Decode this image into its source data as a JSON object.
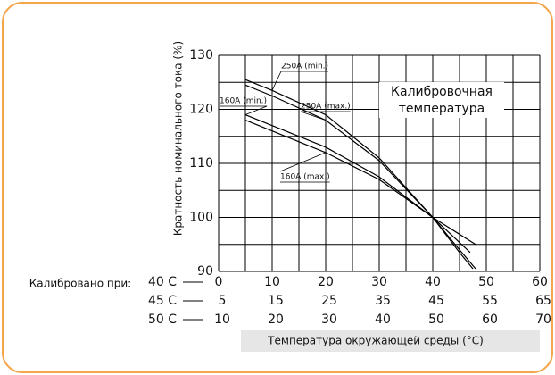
{
  "chart_data": {
    "type": "line",
    "ylabel": "Кратность номинального тока (%)",
    "xlabel": "Температура окружающей среды (°C)",
    "calibrated_label": "Калибровано при:",
    "calibration_note": [
      "Калибровочная",
      "температура"
    ],
    "xlim": [
      0,
      60
    ],
    "ylim": [
      90,
      130
    ],
    "yticks": [
      90,
      100,
      110,
      120,
      130
    ],
    "xgrid": [
      0,
      5,
      10,
      15,
      20,
      25,
      30,
      35,
      40,
      45,
      50,
      55,
      60
    ],
    "ygrid": [
      90,
      95,
      100,
      105,
      110,
      115,
      120,
      125,
      130
    ],
    "x_scales": [
      {
        "name": "40 C",
        "ticks": [
          0,
          10,
          20,
          30,
          40,
          50,
          60
        ]
      },
      {
        "name": "45 C",
        "ticks": [
          5,
          15,
          25,
          35,
          45,
          55,
          65
        ]
      },
      {
        "name": "50 C",
        "ticks": [
          10,
          20,
          30,
          40,
          50,
          60,
          70
        ]
      }
    ],
    "series": [
      {
        "name": "250A (min.)",
        "color": "#000000",
        "x": [
          5,
          10,
          20,
          30,
          40,
          45,
          48
        ],
        "values": [
          125.5,
          123.5,
          119,
          111,
          100,
          94,
          90.5
        ]
      },
      {
        "name": "250A (max.)",
        "color": "#000000",
        "x": [
          5,
          10,
          20,
          30,
          40,
          45,
          47.5
        ],
        "values": [
          124.5,
          122.5,
          118,
          110.5,
          100,
          93.5,
          90.5
        ]
      },
      {
        "name": "160A (min.)",
        "color": "#000000",
        "x": [
          5,
          10,
          20,
          30,
          40,
          48
        ],
        "values": [
          119,
          117,
          113,
          107.5,
          100,
          95
        ]
      },
      {
        "name": "160A (max.)",
        "color": "#000000",
        "x": [
          5,
          10,
          20,
          30,
          40,
          47
        ],
        "values": [
          118,
          116,
          112,
          107,
          100,
          93.5
        ]
      }
    ]
  }
}
